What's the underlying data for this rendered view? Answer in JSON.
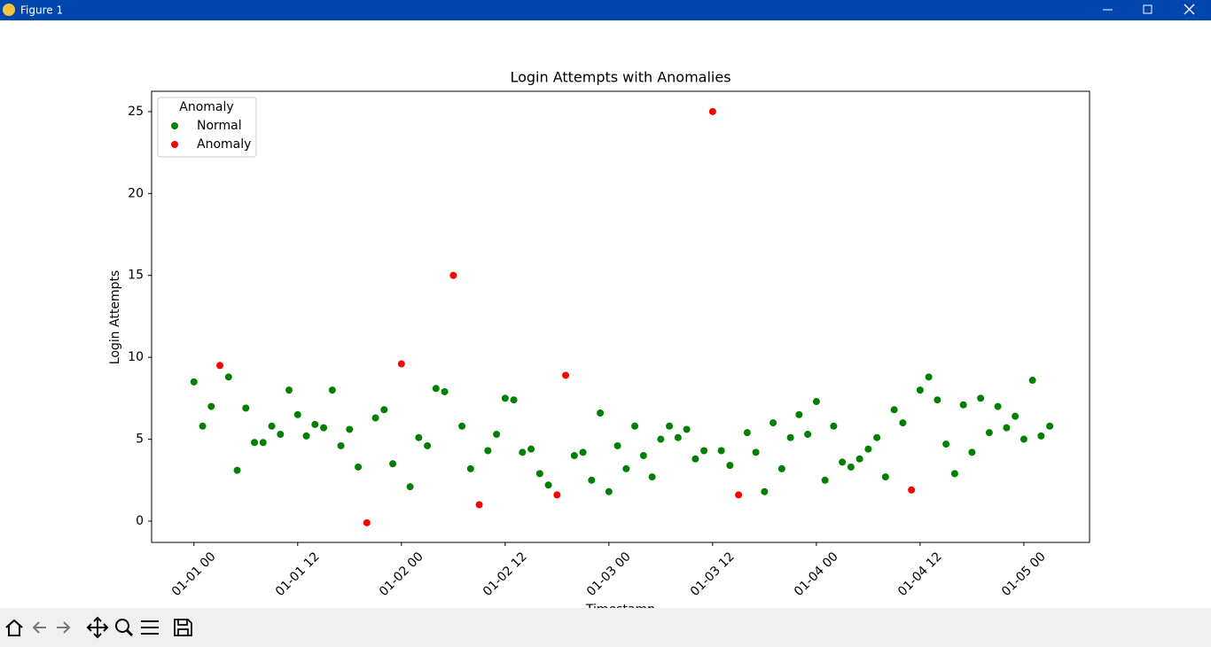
{
  "window": {
    "title": "Figure 1"
  },
  "chart_data": {
    "type": "scatter",
    "title": "Login Attempts with Anomalies",
    "x_label": "Timestamp",
    "y_label": "Login Attempts",
    "legend_title": "Anomaly",
    "legend": "upper left",
    "grid": false,
    "series": [
      {
        "name": "Normal",
        "color": "#008000",
        "x": [
          0,
          1,
          2,
          4,
          5,
          6,
          7,
          8,
          9,
          10,
          11,
          12,
          13,
          14,
          15,
          16,
          17,
          18,
          19,
          21,
          22,
          23,
          25,
          26,
          27,
          28,
          29,
          31,
          32,
          34,
          35,
          36,
          37,
          38,
          39,
          40,
          41,
          44,
          45,
          46,
          47,
          48,
          49,
          50,
          51,
          52,
          53,
          54,
          55,
          56,
          57,
          58,
          59,
          61,
          62,
          64,
          65,
          66,
          67,
          68,
          69,
          70,
          71,
          72,
          73,
          74,
          75,
          76,
          77,
          78,
          79,
          80,
          81,
          82,
          84,
          85,
          86,
          87,
          88,
          89,
          90,
          91,
          92,
          93,
          94,
          95,
          96,
          97,
          98,
          99
        ],
        "values": [
          8.5,
          5.8,
          7.0,
          8.8,
          3.1,
          6.9,
          4.8,
          4.8,
          5.8,
          5.3,
          8.0,
          6.5,
          5.2,
          5.9,
          5.7,
          8.0,
          4.6,
          5.6,
          3.3,
          6.3,
          6.8,
          3.5,
          2.1,
          5.1,
          4.6,
          8.1,
          7.9,
          5.8,
          3.2,
          4.3,
          5.3,
          7.5,
          7.4,
          4.2,
          4.4,
          2.9,
          2.2,
          4.0,
          4.2,
          2.5,
          6.6,
          1.8,
          4.6,
          3.2,
          5.8,
          4.0,
          2.7,
          5.0,
          5.8,
          5.1,
          5.6,
          3.8,
          4.3,
          4.3,
          3.4,
          5.4,
          4.2,
          1.8,
          6.0,
          3.2,
          5.1,
          6.5,
          5.3,
          7.3,
          2.5,
          5.8,
          3.6,
          3.3,
          3.8,
          4.4,
          5.1,
          2.7,
          6.8,
          6.0,
          8.0,
          8.8,
          7.4,
          4.7,
          2.9,
          7.1,
          4.2,
          7.5,
          5.4,
          7.0,
          5.7,
          6.4,
          5.0,
          8.6,
          5.2,
          5.8
        ]
      },
      {
        "name": "Anomaly",
        "color": "#ff0000",
        "x": [
          3,
          20,
          24,
          30,
          33,
          42,
          43,
          60,
          63,
          83
        ],
        "values": [
          9.5,
          -0.1,
          9.6,
          15.0,
          1.0,
          1.6,
          8.9,
          25.0,
          1.6,
          1.9
        ]
      }
    ],
    "xlim": [
      -4.9,
      103.6
    ],
    "xticks": [
      {
        "value": 0,
        "label": "01-01 00"
      },
      {
        "value": 12,
        "label": "01-01 12"
      },
      {
        "value": 24,
        "label": "01-02 00"
      },
      {
        "value": 36,
        "label": "01-02 12"
      },
      {
        "value": 48,
        "label": "01-03 00"
      },
      {
        "value": 60,
        "label": "01-03 12"
      },
      {
        "value": 72,
        "label": "01-04 00"
      },
      {
        "value": 84,
        "label": "01-04 12"
      },
      {
        "value": 96,
        "label": "01-05 00"
      }
    ],
    "ylim": [
      -1.3,
      26.24
    ],
    "yticks": [
      0,
      5,
      10,
      15,
      20,
      25
    ]
  }
}
